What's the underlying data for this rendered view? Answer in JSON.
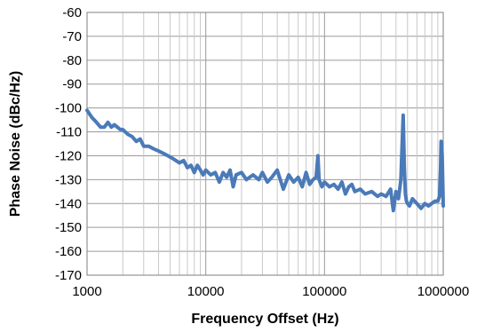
{
  "chart_data": {
    "type": "line",
    "xlabel": "Frequency Offset (Hz)",
    "ylabel": "Phase Noise (dBc/Hz)",
    "xscale": "log",
    "xlim": [
      1000,
      1000000
    ],
    "ylim": [
      -170,
      -60
    ],
    "xticks": [
      1000,
      10000,
      100000,
      1000000
    ],
    "xtick_labels": [
      "1000",
      "10000",
      "100000",
      "1000000"
    ],
    "yticks": [
      -60,
      -70,
      -80,
      -90,
      -100,
      -110,
      -120,
      -130,
      -140,
      -150,
      -160,
      -170
    ],
    "ytick_labels": [
      "-60",
      "-70",
      "-80",
      "-90",
      "-100",
      "-110",
      "-120",
      "-130",
      "-140",
      "-150",
      "-160",
      "-170"
    ],
    "grid": true,
    "legend": "none",
    "series": [
      {
        "color": "#4a7ab8",
        "x": [
          1000,
          1100,
          1200,
          1300,
          1400,
          1500,
          1600,
          1700,
          1800,
          1900,
          2000,
          2200,
          2400,
          2600,
          2800,
          3000,
          3300,
          3600,
          4000,
          4400,
          4800,
          5200,
          5600,
          6000,
          6500,
          7000,
          7500,
          8000,
          8500,
          9000,
          9500,
          10000,
          11000,
          12000,
          13000,
          14000,
          15000,
          16000,
          17000,
          18000,
          20000,
          22000,
          25000,
          28000,
          30000,
          33000,
          36000,
          40000,
          45000,
          50000,
          55000,
          60000,
          65000,
          70000,
          75000,
          80000,
          85000,
          88000,
          90000,
          95000,
          100000,
          110000,
          120000,
          130000,
          140000,
          150000,
          160000,
          170000,
          180000,
          200000,
          220000,
          250000,
          280000,
          300000,
          330000,
          360000,
          380000,
          400000,
          420000,
          440000,
          460000,
          470000,
          480000,
          490000,
          500000,
          520000,
          550000,
          600000,
          650000,
          700000,
          750000,
          800000,
          850000,
          900000,
          930000,
          950000,
          960000,
          970000,
          980000,
          990000,
          1000000
        ],
        "y": [
          -101,
          -104,
          -106,
          -108,
          -108,
          -106,
          -108,
          -107,
          -108,
          -109,
          -109,
          -111,
          -112,
          -114,
          -113,
          -116,
          -116,
          -117,
          -118,
          -119,
          -120,
          -121,
          -122,
          -123,
          -122,
          -125,
          -124,
          -127,
          -124,
          -126,
          -128,
          -126,
          -128,
          -127,
          -131,
          -127,
          -129,
          -126,
          -133,
          -128,
          -127,
          -130,
          -128,
          -130,
          -127,
          -131,
          -129,
          -126,
          -134,
          -128,
          -131,
          -129,
          -133,
          -127,
          -132,
          -130,
          -129,
          -120,
          -130,
          -133,
          -131,
          -133,
          -132,
          -134,
          -131,
          -136,
          -133,
          -132,
          -135,
          -134,
          -136,
          -135,
          -137,
          -136,
          -137,
          -134,
          -143,
          -135,
          -138,
          -130,
          -103,
          -125,
          -136,
          -139,
          -140,
          -141,
          -138,
          -140,
          -142,
          -140,
          -141,
          -140,
          -139,
          -139,
          -137,
          -125,
          -114,
          -115,
          -120,
          -130,
          -141
        ]
      }
    ]
  }
}
